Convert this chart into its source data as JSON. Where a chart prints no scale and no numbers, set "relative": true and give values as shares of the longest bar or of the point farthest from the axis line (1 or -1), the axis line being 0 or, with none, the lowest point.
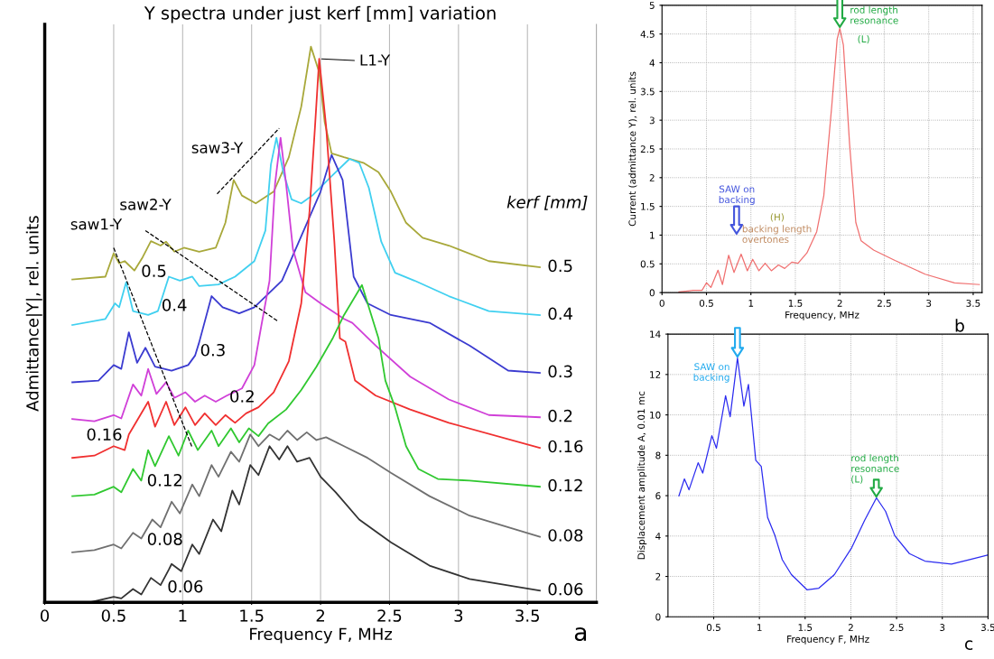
{
  "chart_data": [
    {
      "type": "line",
      "title": "Y spectra under just kerf [mm] variation",
      "xlabel": "Frequency F, MHz",
      "ylabel": "Admittance|Y|, rel. units",
      "relative": true,
      "tick_labels": "x",
      "xlim": [
        0,
        4
      ],
      "xticks": [
        0,
        0.5,
        1,
        1.5,
        2,
        2.5,
        3,
        3.5
      ],
      "grid": "x",
      "series": [
        {
          "name": "0.5",
          "color": "#a8a83a",
          "x": [
            0.2,
            0.44,
            0.5,
            0.54,
            0.58,
            0.65,
            0.71,
            0.77,
            0.84,
            0.88,
            0.94,
            1.01,
            1.12,
            1.24,
            1.31,
            1.37,
            1.43,
            1.53,
            1.66,
            1.77,
            1.86,
            1.93,
            1.99,
            2.03,
            2.08,
            2.17,
            2.31,
            2.42,
            2.51,
            2.62,
            2.74,
            2.93,
            3.22,
            3.59
          ],
          "values": [
            0.581,
            0.586,
            0.628,
            0.61,
            0.614,
            0.597,
            0.621,
            0.65,
            0.642,
            0.649,
            0.631,
            0.638,
            0.631,
            0.638,
            0.683,
            0.76,
            0.732,
            0.718,
            0.739,
            0.801,
            0.892,
            1,
            0.954,
            0.864,
            0.808,
            0.801,
            0.791,
            0.774,
            0.739,
            0.683,
            0.656,
            0.642,
            0.614,
            0.603
          ]
        },
        {
          "name": "0.4",
          "color": "#40d0f0",
          "x": [
            0.2,
            0.44,
            0.51,
            0.54,
            0.59,
            0.64,
            0.75,
            0.82,
            0.9,
            0.98,
            1.07,
            1.12,
            1.26,
            1.38,
            1.52,
            1.6,
            1.64,
            1.68,
            1.73,
            1.79,
            1.86,
            1.94,
            2.08,
            2.21,
            2.28,
            2.35,
            2.44,
            2.54,
            2.68,
            2.93,
            3.22,
            3.59
          ],
          "values": [
            0.499,
            0.51,
            0.538,
            0.531,
            0.576,
            0.524,
            0.517,
            0.524,
            0.586,
            0.579,
            0.586,
            0.569,
            0.572,
            0.586,
            0.614,
            0.669,
            0.788,
            0.836,
            0.774,
            0.725,
            0.718,
            0.732,
            0.767,
            0.798,
            0.791,
            0.746,
            0.649,
            0.593,
            0.579,
            0.551,
            0.524,
            0.517
          ]
        },
        {
          "name": "0.3",
          "color": "#3b3bd0",
          "x": [
            0.2,
            0.39,
            0.5,
            0.555,
            0.61,
            0.67,
            0.73,
            0.8,
            0.92,
            1.04,
            1.09,
            1.12,
            1.21,
            1.29,
            1.41,
            1.52,
            1.72,
            1.89,
            2.0,
            2.08,
            2.16,
            2.24,
            2.34,
            2.51,
            2.79,
            3.08,
            3.36,
            3.59
          ],
          "values": [
            0.396,
            0.399,
            0.427,
            0.42,
            0.486,
            0.431,
            0.458,
            0.424,
            0.417,
            0.427,
            0.444,
            0.468,
            0.551,
            0.531,
            0.52,
            0.531,
            0.579,
            0.676,
            0.739,
            0.805,
            0.76,
            0.586,
            0.538,
            0.517,
            0.503,
            0.462,
            0.417,
            0.413
          ]
        },
        {
          "name": "0.2",
          "color": "#d040d8",
          "x": [
            0.2,
            0.36,
            0.5,
            0.555,
            0.64,
            0.7,
            0.75,
            0.81,
            0.88,
            0.94,
            1.02,
            1.09,
            1.16,
            1.24,
            1.32,
            1.43,
            1.52,
            1.57,
            1.63,
            1.67,
            1.71,
            1.75,
            1.8,
            1.89,
            2.0,
            2.17,
            2.23,
            2.4,
            2.65,
            2.93,
            3.22,
            3.59
          ],
          "values": [
            0.33,
            0.326,
            0.337,
            0.331,
            0.392,
            0.372,
            0.42,
            0.375,
            0.396,
            0.368,
            0.378,
            0.361,
            0.372,
            0.361,
            0.372,
            0.385,
            0.427,
            0.497,
            0.579,
            0.753,
            0.836,
            0.753,
            0.635,
            0.558,
            0.538,
            0.51,
            0.503,
            0.462,
            0.406,
            0.365,
            0.337,
            0.333
          ]
        },
        {
          "name": "0.16",
          "color": "#f03030",
          "x": [
            0.2,
            0.36,
            0.5,
            0.58,
            0.61,
            0.75,
            0.8,
            0.88,
            0.94,
            1.02,
            1.09,
            1.16,
            1.24,
            1.31,
            1.38,
            1.46,
            1.55,
            1.66,
            1.77,
            1.86,
            1.92,
            1.96,
            1.99,
            2.04,
            2.1,
            2.14,
            2.18,
            2.25,
            2.4,
            2.65,
            2.93,
            3.59
          ],
          "values": [
            0.26,
            0.264,
            0.281,
            0.274,
            0.302,
            0.361,
            0.316,
            0.361,
            0.319,
            0.351,
            0.319,
            0.34,
            0.319,
            0.337,
            0.323,
            0.34,
            0.351,
            0.378,
            0.434,
            0.538,
            0.704,
            0.857,
            0.978,
            0.857,
            0.649,
            0.475,
            0.469,
            0.399,
            0.372,
            0.347,
            0.323,
            0.278
          ]
        },
        {
          "name": "0.12",
          "color": "#30c830",
          "x": [
            0.2,
            0.36,
            0.5,
            0.555,
            0.64,
            0.7,
            0.75,
            0.8,
            0.9,
            0.97,
            1.04,
            1.11,
            1.21,
            1.26,
            1.35,
            1.41,
            1.48,
            1.55,
            1.62,
            1.75,
            1.86,
            1.97,
            2.09,
            2.17,
            2.3,
            2.42,
            2.47,
            2.54,
            2.62,
            2.71,
            2.85,
            3.08,
            3.59
          ],
          "values": [
            0.191,
            0.194,
            0.208,
            0.198,
            0.24,
            0.219,
            0.274,
            0.245,
            0.299,
            0.264,
            0.309,
            0.274,
            0.309,
            0.281,
            0.313,
            0.288,
            0.313,
            0.299,
            0.322,
            0.347,
            0.382,
            0.424,
            0.476,
            0.517,
            0.571,
            0.475,
            0.399,
            0.351,
            0.281,
            0.24,
            0.222,
            0.219,
            0.208
          ]
        },
        {
          "name": "0.08",
          "color": "#707070",
          "x": [
            0.2,
            0.36,
            0.5,
            0.555,
            0.64,
            0.7,
            0.78,
            0.84,
            0.92,
            0.98,
            1.07,
            1.12,
            1.21,
            1.26,
            1.35,
            1.41,
            1.49,
            1.55,
            1.63,
            1.7,
            1.76,
            1.83,
            1.9,
            1.97,
            2.04,
            2.17,
            2.34,
            2.51,
            2.79,
            3.08,
            3.59
          ],
          "values": [
            0.09,
            0.094,
            0.104,
            0.097,
            0.125,
            0.115,
            0.149,
            0.135,
            0.181,
            0.16,
            0.212,
            0.191,
            0.247,
            0.226,
            0.271,
            0.253,
            0.302,
            0.281,
            0.302,
            0.292,
            0.309,
            0.292,
            0.306,
            0.292,
            0.297,
            0.281,
            0.26,
            0.233,
            0.191,
            0.156,
            0.118
          ]
        },
        {
          "name": "0.06",
          "color": "#333333",
          "x": [
            0.33,
            0.5,
            0.555,
            0.64,
            0.7,
            0.77,
            0.84,
            0.9,
            0.92,
            0.99,
            1.07,
            1.12,
            1.22,
            1.28,
            1.36,
            1.41,
            1.49,
            1.55,
            1.63,
            1.7,
            1.76,
            1.83,
            1.92,
            2.0,
            2.11,
            2.28,
            2.51,
            2.79,
            3.08,
            3.59
          ],
          "values": [
            0,
            0.01,
            0.007,
            0.024,
            0.014,
            0.044,
            0.031,
            0.059,
            0.069,
            0.056,
            0.104,
            0.087,
            0.149,
            0.128,
            0.201,
            0.176,
            0.247,
            0.229,
            0.281,
            0.257,
            0.281,
            0.253,
            0.26,
            0.226,
            0.198,
            0.149,
            0.108,
            0.066,
            0.042,
            0.021
          ]
        },
        {
          "color": "#000000",
          "line_style": "dashed",
          "x": [
            0.5,
            1.07
          ],
          "values": [
            0.638,
            0.278
          ]
        },
        {
          "color": "#000000",
          "line_style": "dashed",
          "x": [
            0.73,
            1.69
          ],
          "values": [
            0.669,
            0.506
          ]
        },
        {
          "color": "#000000",
          "line_style": "dashed",
          "x": [
            1.25,
            1.7
          ],
          "values": [
            0.735,
            0.853
          ]
        }
      ],
      "annotations": [
        {
          "text": "saw1-Y",
          "x": 0.5,
          "y": 0.638
        },
        {
          "text": "saw2-Y",
          "x": 0.73,
          "y": 0.669
        },
        {
          "text": "saw3-Y",
          "x": 1.25,
          "y": 0.735
        },
        {
          "text": "L1-Y",
          "x": 1.99,
          "y": 0.978
        },
        "0.5",
        "0.4",
        "0.3",
        "0.2",
        "0.16",
        "0.12",
        "0.08",
        "0.06",
        "kerf [mm]",
        "a"
      ]
    },
    {
      "type": "line",
      "xlabel": "Frequency, MHz",
      "ylabel": "Current (admittance Y), rel. units",
      "xlim": [
        0,
        3.6
      ],
      "xticks": [
        0,
        0.5,
        1,
        1.5,
        2,
        2.5,
        3,
        3.5
      ],
      "ylim": [
        0,
        5
      ],
      "yticks": [
        0,
        0.5,
        1,
        1.5,
        2,
        2.5,
        3,
        3.5,
        4,
        4.5,
        5
      ],
      "grid": true,
      "series": [
        {
          "color": "#f07070",
          "x": [
            0.19,
            0.35,
            0.45,
            0.5,
            0.55,
            0.63,
            0.68,
            0.75,
            0.81,
            0.89,
            0.96,
            1.02,
            1.09,
            1.16,
            1.23,
            1.31,
            1.38,
            1.46,
            1.53,
            1.63,
            1.74,
            1.82,
            1.91,
            1.97,
            2.0,
            2.04,
            2.11,
            2.18,
            2.24,
            2.38,
            2.62,
            2.96,
            3.29,
            3.57
          ],
          "values": [
            0.01,
            0.04,
            0.04,
            0.17,
            0.09,
            0.39,
            0.14,
            0.65,
            0.35,
            0.67,
            0.38,
            0.58,
            0.38,
            0.51,
            0.38,
            0.48,
            0.42,
            0.53,
            0.51,
            0.69,
            1.06,
            1.69,
            3.26,
            4.41,
            4.6,
            4.31,
            2.58,
            1.22,
            0.9,
            0.74,
            0.56,
            0.32,
            0.17,
            0.14
          ]
        }
      ],
      "annotations": [
        {
          "text": "rod length\nresonance",
          "x": 2.0,
          "y": 4.6
        },
        "(L)",
        "SAW on\nbacking",
        "(H)",
        "backing length\novertones",
        "b"
      ]
    },
    {
      "type": "line",
      "xlabel": "Frequency F, MHz",
      "ylabel": "Displacement amplitude A, 0.01 mc",
      "xlim": [
        0,
        3.5
      ],
      "xticks": [
        0.5,
        1,
        1.5,
        2,
        2.5,
        3,
        3.5
      ],
      "ylim": [
        0,
        14
      ],
      "yticks": [
        0,
        2,
        4,
        6,
        8,
        10,
        12,
        14
      ],
      "grid": true,
      "series": [
        {
          "color": "#2b2bf0",
          "x": [
            0.12,
            0.18,
            0.23,
            0.33,
            0.38,
            0.48,
            0.53,
            0.63,
            0.68,
            0.76,
            0.83,
            0.88,
            0.96,
            1.02,
            1.09,
            1.17,
            1.25,
            1.35,
            1.52,
            1.65,
            1.82,
            2.01,
            2.15,
            2.28,
            2.38,
            2.48,
            2.64,
            2.81,
            3.1,
            3.3,
            3.5
          ],
          "values": [
            5.99,
            6.83,
            6.29,
            7.63,
            7.12,
            8.97,
            8.35,
            10.95,
            9.91,
            12.82,
            10.43,
            11.51,
            7.75,
            7.45,
            4.92,
            4.02,
            2.83,
            2.09,
            1.34,
            1.42,
            2.09,
            3.43,
            4.77,
            5.89,
            5.22,
            4.02,
            3.13,
            2.76,
            2.61,
            2.83,
            3.06
          ]
        }
      ],
      "annotations": [
        {
          "text": "SAW on\nbacking",
          "x": 0.76,
          "y": 12.82
        },
        "rod length\nresonance\n(L)",
        "c"
      ]
    }
  ]
}
